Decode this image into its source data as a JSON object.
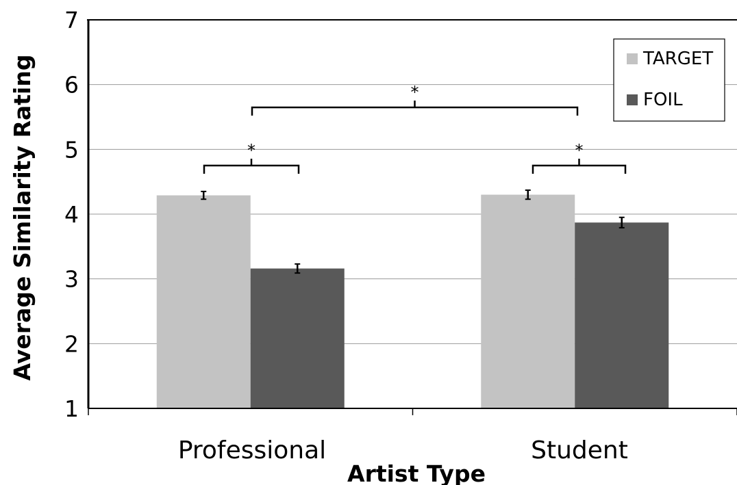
{
  "chart_data": {
    "type": "bar",
    "xlabel": "Artist Type",
    "ylabel": "Average Similarity Rating",
    "ylim": [
      1,
      7
    ],
    "yticks": [
      1,
      2,
      3,
      4,
      5,
      6,
      7
    ],
    "grid": true,
    "legend_position": "top-right",
    "categories": [
      "Professional",
      "Student"
    ],
    "series": [
      {
        "name": "TARGET",
        "color": "#c3c3c3",
        "values": [
          4.29,
          4.3
        ],
        "errors": [
          0.06,
          0.07
        ]
      },
      {
        "name": "FOIL",
        "color": "#595959",
        "values": [
          3.16,
          3.87
        ],
        "errors": [
          0.07,
          0.08
        ]
      }
    ],
    "annotations": [
      {
        "label": "*",
        "between": "TARGET vs FOIL (Professional)"
      },
      {
        "label": "*",
        "between": "TARGET vs FOIL (Student)"
      },
      {
        "label": "*",
        "between": "Professional vs Student"
      }
    ]
  }
}
